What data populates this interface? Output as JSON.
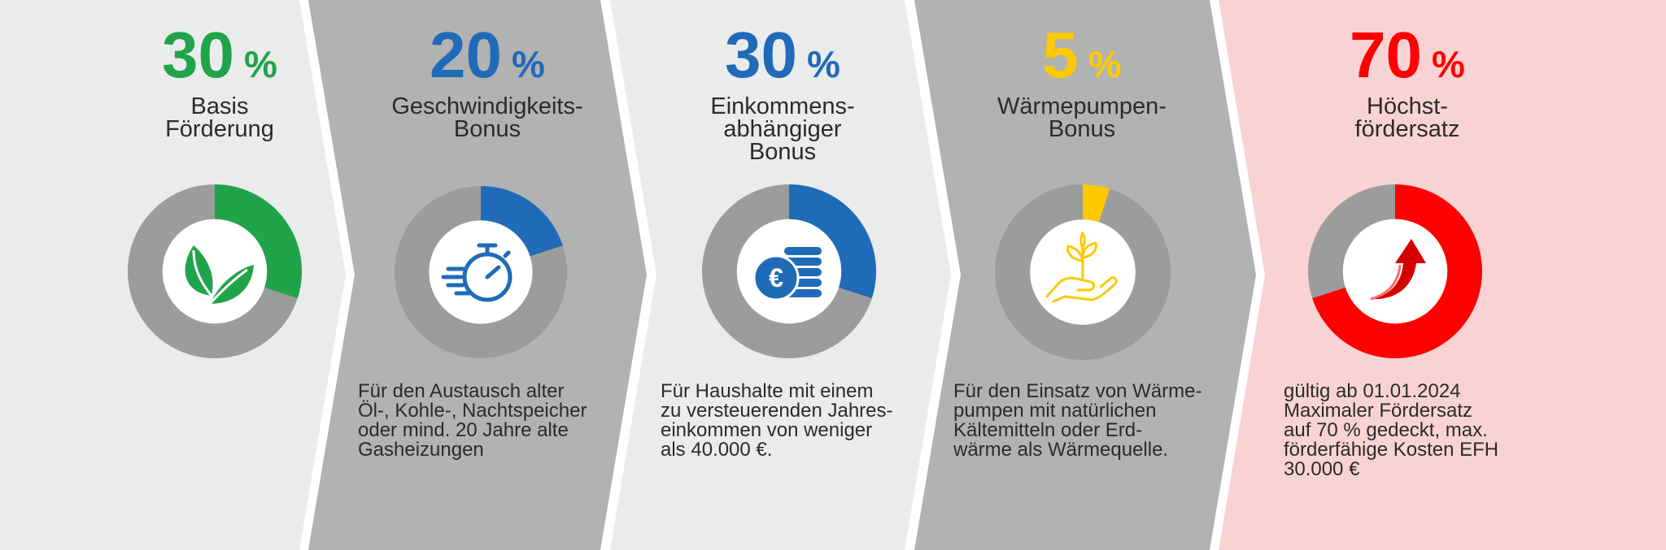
{
  "colors": {
    "green": "#21a34a",
    "blue": "#1f6bb8",
    "yellow": "#fdc900",
    "red": "#ff0000",
    "ring_grey": "#9c9c9c",
    "panel_light": "#eaebeb",
    "panel_dark": "#b1b2b2",
    "panel_pink": "#f9d3d4"
  },
  "panels": [
    {
      "percent": "30",
      "percent_sign": "%",
      "title_lines": [
        "Basis",
        "Förderung"
      ],
      "share": 0.3,
      "icon": "leaf-icon",
      "description": []
    },
    {
      "percent": "20",
      "percent_sign": "%",
      "title_lines": [
        "Geschwindigkeits-",
        "Bonus"
      ],
      "share": 0.2,
      "icon": "stopwatch-icon",
      "description": [
        "Für den Austausch alter",
        "Öl-, Kohle-, Nachtspeicher",
        "oder mind. 20 Jahre alte",
        "Gasheizungen"
      ]
    },
    {
      "percent": "30",
      "percent_sign": "%",
      "title_lines": [
        "Einkommens-",
        "abhängiger",
        "Bonus"
      ],
      "share": 0.3,
      "icon": "euro-coins-icon",
      "description": [
        "Für Haushalte mit einem",
        "zu versteuerenden Jahres-",
        "einkommen von weniger",
        "als 40.000 €."
      ]
    },
    {
      "percent": "5",
      "percent_sign": "%",
      "title_lines": [
        "Wärmepumpen-",
        "Bonus"
      ],
      "share": 0.05,
      "icon": "hand-plant-icon",
      "description": [
        "Für den Einsatz von Wärme-",
        "pumpen mit natürlichen",
        "Kältemitteln oder Erd-",
        "wärme als Wärmequelle."
      ]
    },
    {
      "percent": "70",
      "percent_sign": "%",
      "title_lines": [
        "Höchst-",
        "fördersatz"
      ],
      "share": 0.7,
      "icon": "arrow-up-icon",
      "description": [
        "gültig ab 01.01.2024",
        "Maximaler Fördersatz",
        "auf 70 % gedeckt, max.",
        "förderfähige Kosten EFH",
        "30.000 €"
      ]
    }
  ]
}
